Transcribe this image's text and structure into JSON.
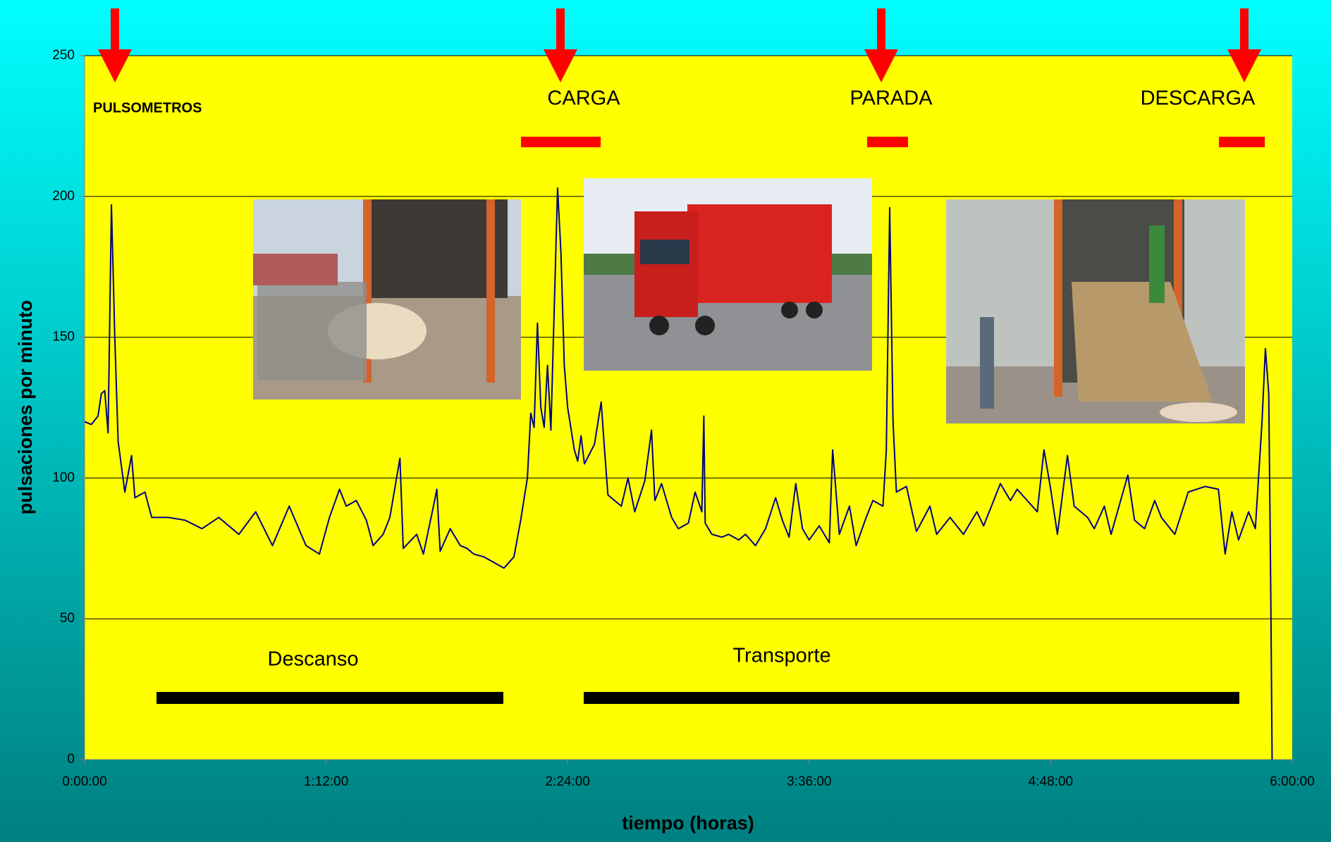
{
  "chart_data": {
    "type": "line",
    "x_label": "tiempo (horas)",
    "y_label": "pulsaciones por minuto",
    "xlim": [
      0,
      360
    ],
    "ylim": [
      0,
      250
    ],
    "xticks": [
      {
        "value": 0,
        "label": "0:00:00"
      },
      {
        "value": 72,
        "label": "1:12:00"
      },
      {
        "value": 144,
        "label": "2:24:00"
      },
      {
        "value": 216,
        "label": "3:36:00"
      },
      {
        "value": 288,
        "label": "4:48:00"
      },
      {
        "value": 360,
        "label": "6:00:00"
      }
    ],
    "yticks": [
      0,
      50,
      100,
      150,
      200,
      250
    ],
    "grid": true,
    "annotations": [
      "PULSOMETROS",
      "CARGA",
      "PARADA",
      "DESCARGA",
      "Descanso",
      "Transporte"
    ],
    "x": [
      0,
      2,
      4,
      5,
      6,
      7,
      8,
      9,
      10,
      12,
      14,
      15,
      18,
      20,
      25,
      30,
      35,
      40,
      46,
      51,
      56,
      61,
      66,
      70,
      73,
      76,
      78,
      81,
      84,
      86,
      89,
      91,
      94,
      95,
      99,
      101,
      104,
      105,
      106,
      109,
      112,
      114,
      116,
      119,
      122,
      125,
      128,
      130,
      132,
      133,
      134,
      135,
      136,
      137,
      138,
      139,
      140,
      141,
      142,
      143,
      144,
      146,
      147,
      148,
      149,
      152,
      154,
      155,
      156,
      160,
      162,
      164,
      167,
      169,
      170,
      172,
      175,
      177,
      180,
      182,
      184,
      184.6,
      185,
      187,
      190,
      192,
      195,
      197,
      200,
      203,
      206,
      208,
      210,
      212,
      214,
      216,
      219,
      222,
      223,
      225,
      228,
      230,
      233,
      235,
      238,
      239,
      240,
      241,
      242,
      245,
      248,
      252,
      254,
      258,
      262,
      266,
      268,
      271,
      273,
      276,
      278,
      281,
      284,
      286,
      288,
      290,
      293,
      295,
      299,
      301,
      304,
      306,
      311,
      313,
      316,
      319,
      321,
      325,
      329,
      334,
      338,
      340,
      342,
      344,
      347,
      349,
      351,
      352,
      353,
      353.6,
      354
    ],
    "series": [
      {
        "color": "#000080",
        "values": [
          120,
          119,
          122,
          130,
          131,
          116,
          197,
          150,
          113,
          95,
          108,
          93,
          95,
          86,
          86,
          85,
          82,
          86,
          80,
          88,
          76,
          90,
          76,
          73,
          86,
          96,
          90,
          92,
          85,
          76,
          80,
          86,
          107,
          75,
          80,
          73,
          90,
          96,
          74,
          82,
          76,
          75,
          73,
          72,
          70,
          68,
          72,
          85,
          100,
          123,
          118,
          155,
          125,
          118,
          140,
          117,
          160,
          203,
          180,
          140,
          125,
          110,
          106,
          115,
          105,
          112,
          127,
          110,
          94,
          90,
          100,
          88,
          99,
          117,
          92,
          98,
          86,
          82,
          84,
          95,
          88,
          122,
          84,
          80,
          79,
          80,
          78,
          80,
          76,
          82,
          93,
          85,
          79,
          98,
          82,
          78,
          83,
          77,
          110,
          80,
          90,
          76,
          86,
          92,
          90,
          110,
          196,
          120,
          95,
          97,
          81,
          90,
          80,
          86,
          80,
          88,
          83,
          92,
          98,
          92,
          96,
          92,
          88,
          110,
          96,
          80,
          108,
          90,
          86,
          82,
          90,
          80,
          101,
          85,
          82,
          92,
          86,
          80,
          95,
          97,
          96,
          73,
          88,
          78,
          88,
          82,
          120,
          146,
          130,
          60,
          0
        ]
      }
    ]
  }
}
